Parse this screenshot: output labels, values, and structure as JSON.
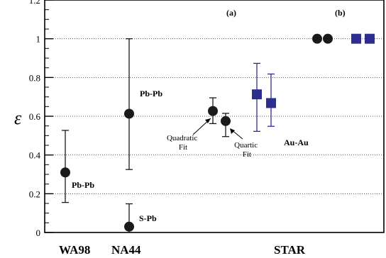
{
  "chart_data": {
    "type": "scatter",
    "ylabel": "ε",
    "ylim": [
      0,
      1.2
    ],
    "y_ticks": [
      0,
      0.2,
      0.4,
      0.6,
      0.8,
      1,
      1.2
    ],
    "y_tick_labels": [
      "0",
      "0.2",
      "0.4",
      "0.6",
      "0.8",
      "1",
      "1.2"
    ],
    "grid": "horizontal dotted",
    "group_labels": [
      "WA98",
      "NA44",
      "STAR"
    ],
    "panel_labels": [
      "(a)",
      "(b)"
    ],
    "annotations": [
      "Pb-Pb",
      "Pb-Pb",
      "S-Pb",
      "Au-Au",
      "Quadratic Fit",
      "Quartic Fit"
    ],
    "series": [
      {
        "marker": "circle",
        "color": "#1a1a1a",
        "points": [
          {
            "group": "WA98",
            "y": 0.31,
            "ylow": 0.155,
            "yhigh": 0.527
          },
          {
            "group": "NA44",
            "y": 0.613,
            "ylow": 0.325,
            "yhigh": 1.0
          },
          {
            "group": "NA44",
            "y": 0.03,
            "ylow": 0.0,
            "yhigh": 0.148
          },
          {
            "group": "STAR (a)",
            "y": 0.627,
            "ylow": 0.562,
            "yhigh": 0.695
          },
          {
            "group": "STAR (a)",
            "y": 0.575,
            "ylow": 0.495,
            "yhigh": 0.615
          },
          {
            "group": "STAR (b)",
            "y": 1.0
          },
          {
            "group": "STAR (b)",
            "y": 1.0
          }
        ]
      },
      {
        "marker": "square",
        "color": "#2e2e8f",
        "points": [
          {
            "group": "STAR (a)",
            "y": 0.713,
            "ylow": 0.522,
            "yhigh": 0.873
          },
          {
            "group": "STAR (a)",
            "y": 0.668,
            "ylow": 0.548,
            "yhigh": 0.818
          },
          {
            "group": "STAR (b)",
            "y": 1.0
          },
          {
            "group": "STAR (b)",
            "y": 1.0
          }
        ]
      }
    ]
  }
}
